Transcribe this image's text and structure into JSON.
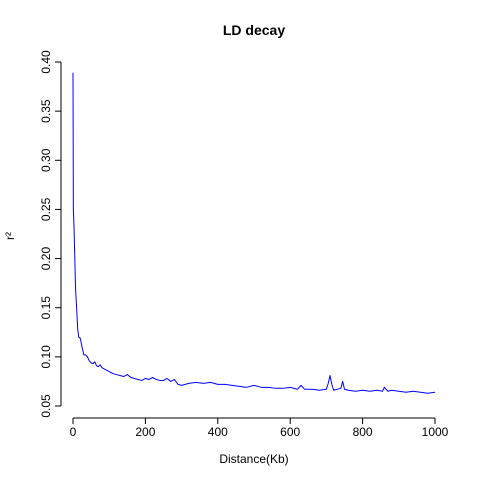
{
  "chart_data": {
    "type": "line",
    "title": "LD decay",
    "xlabel": "Distance(Kb)",
    "ylabel": "r²",
    "xlim": [
      0,
      1000
    ],
    "ylim": [
      0.05,
      0.4
    ],
    "x_ticks": [
      0,
      200,
      400,
      600,
      800,
      1000
    ],
    "x_tick_labels": [
      "0",
      "200",
      "400",
      "600",
      "800",
      "1000"
    ],
    "y_ticks": [
      0.05,
      0.1,
      0.15,
      0.2,
      0.25,
      0.3,
      0.35,
      0.4
    ],
    "y_tick_labels": [
      "0.05",
      "0.10",
      "0.15",
      "0.20",
      "0.25",
      "0.30",
      "0.35",
      "0.40"
    ],
    "grid": false,
    "series": [
      {
        "color": "#0000ff",
        "x": [
          0,
          1,
          2,
          3,
          4,
          5,
          7,
          10,
          13,
          16,
          20,
          25,
          30,
          35,
          40,
          45,
          50,
          55,
          60,
          65,
          70,
          75,
          80,
          90,
          100,
          110,
          120,
          130,
          140,
          150,
          160,
          170,
          180,
          190,
          200,
          210,
          220,
          230,
          240,
          250,
          260,
          270,
          280,
          290,
          300,
          320,
          340,
          360,
          380,
          400,
          420,
          440,
          460,
          480,
          500,
          520,
          540,
          560,
          580,
          600,
          620,
          630,
          640,
          660,
          680,
          700,
          705,
          710,
          715,
          720,
          740,
          745,
          750,
          760,
          780,
          800,
          820,
          840,
          855,
          860,
          870,
          880,
          900,
          920,
          940,
          960,
          980,
          1000
        ],
        "y": [
          0.389,
          0.25,
          0.24,
          0.23,
          0.215,
          0.2,
          0.17,
          0.15,
          0.128,
          0.12,
          0.119,
          0.11,
          0.102,
          0.102,
          0.1,
          0.096,
          0.094,
          0.093,
          0.095,
          0.091,
          0.09,
          0.092,
          0.089,
          0.087,
          0.085,
          0.083,
          0.082,
          0.081,
          0.08,
          0.082,
          0.079,
          0.078,
          0.077,
          0.076,
          0.078,
          0.077,
          0.079,
          0.077,
          0.076,
          0.076,
          0.078,
          0.075,
          0.077,
          0.072,
          0.071,
          0.073,
          0.074,
          0.073,
          0.074,
          0.072,
          0.072,
          0.071,
          0.07,
          0.069,
          0.071,
          0.069,
          0.069,
          0.068,
          0.068,
          0.069,
          0.067,
          0.071,
          0.067,
          0.067,
          0.066,
          0.067,
          0.073,
          0.081,
          0.072,
          0.066,
          0.068,
          0.075,
          0.067,
          0.066,
          0.065,
          0.066,
          0.065,
          0.066,
          0.065,
          0.069,
          0.065,
          0.066,
          0.065,
          0.064,
          0.065,
          0.064,
          0.063,
          0.064
        ]
      }
    ]
  }
}
